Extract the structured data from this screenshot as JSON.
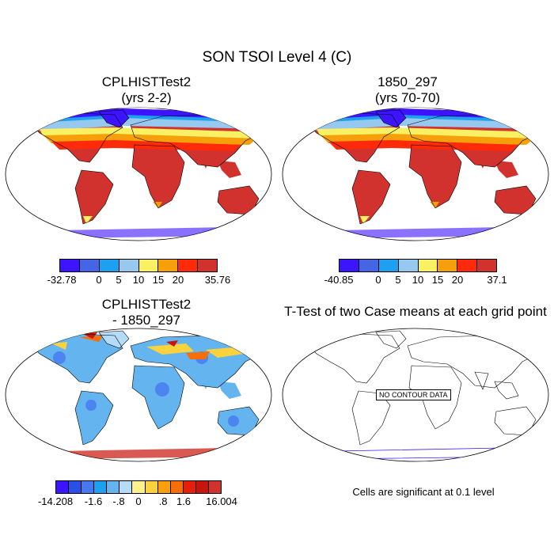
{
  "title": "SON TSOI Level 4 (C)",
  "panels": {
    "top_left": {
      "title_line1": "CPLHISTTest2",
      "title_line2": "(yrs 2-2)",
      "colorbar": {
        "colors": [
          "#3c14ff",
          "#4664e6",
          "#1ea0f0",
          "#96c8f0",
          "#faf064",
          "#f5a00a",
          "#ff2a0a",
          "#d2322d"
        ],
        "labels": [
          "-32.78",
          "0",
          "5",
          "10",
          "15",
          "20",
          "35.76"
        ]
      }
    },
    "top_right": {
      "title_line1": "1850_297",
      "title_line2": "(yrs 70-70)",
      "colorbar": {
        "colors": [
          "#3c14ff",
          "#4664e6",
          "#1ea0f0",
          "#96c8f0",
          "#faf064",
          "#f5a00a",
          "#ff2a0a",
          "#d2322d"
        ],
        "labels": [
          "-40.85",
          "0",
          "5",
          "10",
          "15",
          "20",
          "37.1"
        ]
      }
    },
    "bottom_left": {
      "title_line1": "CPLHISTTest2",
      "title_line2": "- 1850_297",
      "colorbar": {
        "colors": [
          "#3c14ff",
          "#2850e6",
          "#4678f0",
          "#1ea0f0",
          "#64b4f0",
          "#b4dcf8",
          "#fff08c",
          "#fad23c",
          "#faa00a",
          "#f56e0a",
          "#e61e0a",
          "#c8140a",
          "#d2322d"
        ],
        "labels": [
          "-14.208",
          "-1.6",
          "-.8",
          "0",
          ".8",
          "1.6",
          "16.004"
        ]
      }
    },
    "bottom_right": {
      "title": "T-Test of two Case means at each grid point",
      "no_data": "NO CONTOUR DATA",
      "note": "Cells are significant at 0.1 level"
    }
  }
}
